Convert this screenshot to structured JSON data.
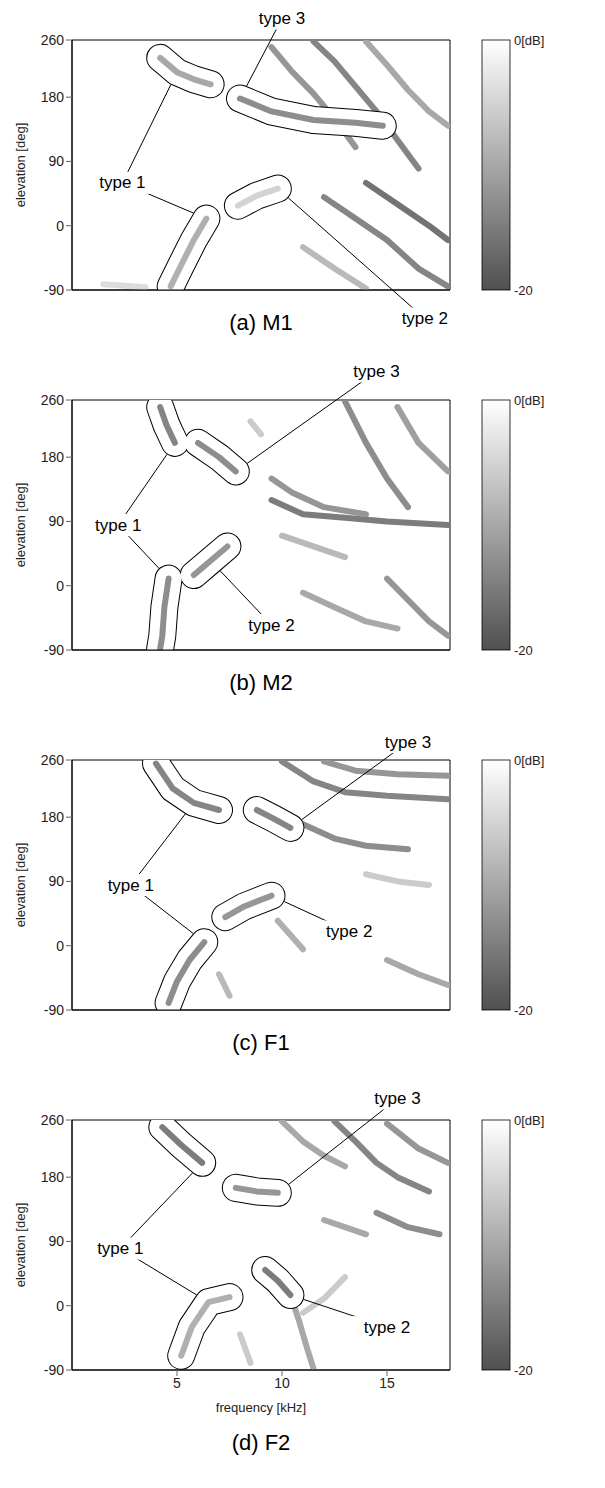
{
  "chart_data": [
    {
      "type": "heatmap",
      "title": "(a) M1",
      "y_label": "elevation [deg]",
      "xlim": [
        0,
        18
      ],
      "xticks": [
        5,
        10,
        15
      ],
      "ylim": [
        -90,
        260
      ],
      "yticks": [
        260,
        180,
        90,
        0,
        -90
      ],
      "tick_labels": "y",
      "colorbar": {
        "range": [
          -20,
          0
        ],
        "ticks": [
          {
            "value": 0,
            "label": "0[dB]"
          },
          -20
        ]
      },
      "notches": [
        {
          "points": [
            [
              9.5,
              250
            ],
            [
              10.5,
              215
            ],
            [
              11.5,
              185
            ],
            [
              12.5,
              150
            ],
            [
              13.5,
              110
            ]
          ],
          "level": -12
        },
        {
          "points": [
            [
              11.5,
              258
            ],
            [
              12.5,
              230
            ],
            [
              13.5,
              195
            ],
            [
              14.5,
              160
            ],
            [
              15.5,
              120
            ],
            [
              16.5,
              80
            ]
          ],
          "level": -14
        },
        {
          "points": [
            [
              14,
              258
            ],
            [
              15,
              225
            ],
            [
              16,
              190
            ],
            [
              17,
              160
            ],
            [
              17.9,
              140
            ]
          ],
          "level": -10
        },
        {
          "points": [
            [
              12,
              40
            ],
            [
              13.5,
              10
            ],
            [
              15,
              -20
            ],
            [
              16.5,
              -60
            ],
            [
              17.9,
              -85
            ]
          ],
          "level": -14
        },
        {
          "points": [
            [
              14,
              60
            ],
            [
              15.5,
              30
            ],
            [
              17,
              0
            ],
            [
              17.9,
              -20
            ]
          ],
          "level": -16
        },
        {
          "points": [
            [
              11,
              -30
            ],
            [
              12.5,
              -60
            ],
            [
              14,
              -88
            ]
          ],
          "level": -8
        },
        {
          "points": [
            [
              1.5,
              -82
            ],
            [
              3.5,
              -86
            ]
          ],
          "level": -4
        },
        {
          "points": [
            [
              4.2,
              235
            ],
            [
              5.0,
              215
            ],
            [
              5.8,
              205
            ],
            [
              6.6,
              198
            ]
          ],
          "level": -10,
          "circled": "type 1"
        },
        {
          "points": [
            [
              6.4,
              10
            ],
            [
              5.8,
              -20
            ],
            [
              5.2,
              -55
            ],
            [
              4.7,
              -85
            ]
          ],
          "level": -9,
          "circled": "type 1"
        },
        {
          "points": [
            [
              7.9,
              28
            ],
            [
              8.8,
              42
            ],
            [
              9.8,
              52
            ]
          ],
          "level": -5,
          "circled": "type 2"
        },
        {
          "points": [
            [
              8.0,
              178
            ],
            [
              9.5,
              160
            ],
            [
              11.5,
              148
            ],
            [
              13.5,
              144
            ],
            [
              14.8,
              140
            ]
          ],
          "level": -13,
          "circled": "type 3"
        }
      ],
      "annotations": [
        {
          "text": "type 1",
          "at": [
            2.4,
            60
          ]
        },
        {
          "text": "type 2",
          "at": [
            16.8,
            -130
          ]
        },
        {
          "text": "type 3",
          "at": [
            10,
            290
          ]
        }
      ]
    },
    {
      "type": "heatmap",
      "title": "(b) M2",
      "y_label": "elevation [deg]",
      "xlim": [
        0,
        18
      ],
      "xticks": [
        5,
        10,
        15
      ],
      "ylim": [
        -90,
        260
      ],
      "yticks": [
        260,
        180,
        90,
        0,
        -90
      ],
      "tick_labels": "y",
      "colorbar": {
        "range": [
          -20,
          0
        ],
        "ticks": [
          {
            "value": 0,
            "label": "0[dB]"
          },
          -20
        ]
      },
      "notches": [
        {
          "points": [
            [
              9.5,
              120
            ],
            [
              11,
              100
            ],
            [
              13,
              95
            ],
            [
              15,
              90
            ],
            [
              17.9,
              85
            ]
          ],
          "level": -15
        },
        {
          "points": [
            [
              9.5,
              150
            ],
            [
              10.5,
              130
            ],
            [
              12,
              110
            ],
            [
              14,
              100
            ]
          ],
          "level": -12
        },
        {
          "points": [
            [
              13,
              258
            ],
            [
              14,
              200
            ],
            [
              15,
              150
            ],
            [
              16,
              110
            ]
          ],
          "level": -13
        },
        {
          "points": [
            [
              15.5,
              250
            ],
            [
              16.5,
              200
            ],
            [
              17.9,
              160
            ]
          ],
          "level": -11
        },
        {
          "points": [
            [
              10,
              70
            ],
            [
              11.5,
              55
            ],
            [
              13,
              40
            ]
          ],
          "level": -8
        },
        {
          "points": [
            [
              11,
              -10
            ],
            [
              12.5,
              -30
            ],
            [
              14,
              -50
            ],
            [
              15.5,
              -60
            ]
          ],
          "level": -10
        },
        {
          "points": [
            [
              15,
              10
            ],
            [
              16,
              -20
            ],
            [
              17,
              -50
            ],
            [
              17.9,
              -70
            ]
          ],
          "level": -12
        },
        {
          "points": [
            [
              8.5,
              230
            ],
            [
              9,
              212
            ]
          ],
          "level": -6
        },
        {
          "points": [
            [
              4.2,
              250
            ],
            [
              4.5,
              225
            ],
            [
              4.9,
              200
            ]
          ],
          "level": -14,
          "circled": "type 1"
        },
        {
          "points": [
            [
              4.6,
              10
            ],
            [
              4.4,
              -30
            ],
            [
              4.3,
              -70
            ],
            [
              4.2,
              -88
            ]
          ],
          "level": -13,
          "circled": "type 1"
        },
        {
          "points": [
            [
              5.8,
              15
            ],
            [
              6.6,
              35
            ],
            [
              7.4,
              55
            ]
          ],
          "level": -12,
          "circled": "type 2"
        },
        {
          "points": [
            [
              6.0,
              200
            ],
            [
              7.0,
              180
            ],
            [
              7.8,
              160
            ]
          ],
          "level": -13,
          "circled": "type 3"
        }
      ],
      "annotations": [
        {
          "text": "type 1",
          "at": [
            2.2,
            85
          ]
        },
        {
          "text": "type 2",
          "at": [
            9.5,
            -55
          ]
        },
        {
          "text": "type 3",
          "at": [
            14.5,
            300
          ]
        }
      ]
    },
    {
      "type": "heatmap",
      "title": "(c) F1",
      "y_label": "elevation [deg]",
      "xlim": [
        0,
        18
      ],
      "xticks": [
        5,
        10,
        15
      ],
      "ylim": [
        -90,
        260
      ],
      "yticks": [
        260,
        180,
        90,
        0,
        -90
      ],
      "tick_labels": "y",
      "colorbar": {
        "range": [
          -20,
          0
        ],
        "ticks": [
          {
            "value": 0,
            "label": "0[dB]"
          },
          -20
        ]
      },
      "notches": [
        {
          "points": [
            [
              10,
              258
            ],
            [
              11.5,
              230
            ],
            [
              13,
              215
            ],
            [
              15,
              210
            ],
            [
              17.9,
              205
            ]
          ],
          "level": -14
        },
        {
          "points": [
            [
              12,
              258
            ],
            [
              13.5,
              245
            ],
            [
              15.5,
              240
            ],
            [
              17.9,
              238
            ]
          ],
          "level": -12
        },
        {
          "points": [
            [
              11,
              170
            ],
            [
              12.5,
              150
            ],
            [
              14,
              140
            ],
            [
              16,
              135
            ]
          ],
          "level": -13
        },
        {
          "points": [
            [
              9.8,
              35
            ],
            [
              10.4,
              15
            ],
            [
              11,
              -5
            ]
          ],
          "level": -9
        },
        {
          "points": [
            [
              7,
              -40
            ],
            [
              7.5,
              -70
            ]
          ],
          "level": -8
        },
        {
          "points": [
            [
              15,
              -20
            ],
            [
              16.5,
              -40
            ],
            [
              17.9,
              -55
            ]
          ],
          "level": -10
        },
        {
          "points": [
            [
              14,
              100
            ],
            [
              15.5,
              90
            ],
            [
              17,
              85
            ]
          ],
          "level": -6
        },
        {
          "points": [
            [
              4.0,
              255
            ],
            [
              4.8,
              220
            ],
            [
              5.8,
              200
            ],
            [
              7.0,
              190
            ]
          ],
          "level": -14,
          "circled": "type 1"
        },
        {
          "points": [
            [
              8.8,
              190
            ],
            [
              9.6,
              178
            ],
            [
              10.4,
              165
            ]
          ],
          "level": -14,
          "circled": "type 3"
        },
        {
          "points": [
            [
              6.3,
              5
            ],
            [
              5.6,
              -20
            ],
            [
              5.0,
              -50
            ],
            [
              4.6,
              -80
            ]
          ],
          "level": -13,
          "circled": "type 1"
        },
        {
          "points": [
            [
              7.3,
              40
            ],
            [
              8.2,
              55
            ],
            [
              9.5,
              70
            ]
          ],
          "level": -12,
          "circled": "type 2"
        }
      ],
      "annotations": [
        {
          "text": "type 1",
          "at": [
            2.8,
            85
          ]
        },
        {
          "text": "type 2",
          "at": [
            13.2,
            20
          ]
        },
        {
          "text": "type 3",
          "at": [
            16,
            285
          ]
        }
      ]
    },
    {
      "type": "heatmap",
      "title": "(d) F2",
      "y_label": "elevation [deg]",
      "x_label": "frequency [kHz]",
      "xlim": [
        0,
        18
      ],
      "xticks": [
        5,
        10,
        15
      ],
      "ylim": [
        -90,
        260
      ],
      "yticks": [
        260,
        180,
        90,
        0,
        -90
      ],
      "colorbar": {
        "range": [
          -20,
          0
        ],
        "ticks": [
          {
            "value": 0,
            "label": "0[dB]"
          },
          -20
        ]
      },
      "notches": [
        {
          "points": [
            [
              10.4,
              15
            ],
            [
              10.8,
              -20
            ],
            [
              11.2,
              -60
            ],
            [
              11.5,
              -88
            ]
          ],
          "level": -10
        },
        {
          "points": [
            [
              11,
              -10
            ],
            [
              12,
              10
            ],
            [
              13,
              40
            ]
          ],
          "level": -6
        },
        {
          "points": [
            [
              10,
              258
            ],
            [
              11,
              230
            ],
            [
              12,
              210
            ],
            [
              13,
              195
            ]
          ],
          "level": -10
        },
        {
          "points": [
            [
              12.5,
              258
            ],
            [
              13.5,
              230
            ],
            [
              14.5,
              200
            ],
            [
              15.5,
              180
            ],
            [
              17,
              160
            ]
          ],
          "level": -14
        },
        {
          "points": [
            [
              15,
              255
            ],
            [
              16.5,
              220
            ],
            [
              17.9,
              200
            ]
          ],
          "level": -12
        },
        {
          "points": [
            [
              12,
              120
            ],
            [
              13,
              110
            ],
            [
              14,
              100
            ]
          ],
          "level": -10
        },
        {
          "points": [
            [
              14.5,
              130
            ],
            [
              16,
              110
            ],
            [
              17.5,
              100
            ]
          ],
          "level": -13
        },
        {
          "points": [
            [
              8,
              -40
            ],
            [
              8.5,
              -80
            ]
          ],
          "level": -6
        },
        {
          "points": [
            [
              4.3,
              250
            ],
            [
              5.2,
              225
            ],
            [
              6.2,
              200
            ]
          ],
          "level": -15,
          "circled": "type 1"
        },
        {
          "points": [
            [
              7.8,
              165
            ],
            [
              8.8,
              160
            ],
            [
              9.8,
              158
            ]
          ],
          "level": -12,
          "circled": "type 3"
        },
        {
          "points": [
            [
              7.5,
              12
            ],
            [
              6.5,
              5
            ],
            [
              5.7,
              -30
            ],
            [
              5.2,
              -70
            ]
          ],
          "level": -9,
          "circled": "type 1"
        },
        {
          "points": [
            [
              9.2,
              50
            ],
            [
              9.8,
              35
            ],
            [
              10.4,
              15
            ]
          ],
          "level": -15,
          "circled": "type 2"
        }
      ],
      "annotations": [
        {
          "text": "type 1",
          "at": [
            2.3,
            80
          ]
        },
        {
          "text": "type 2",
          "at": [
            15,
            -30
          ]
        },
        {
          "text": "type 3",
          "at": [
            15.5,
            290
          ]
        }
      ]
    }
  ]
}
